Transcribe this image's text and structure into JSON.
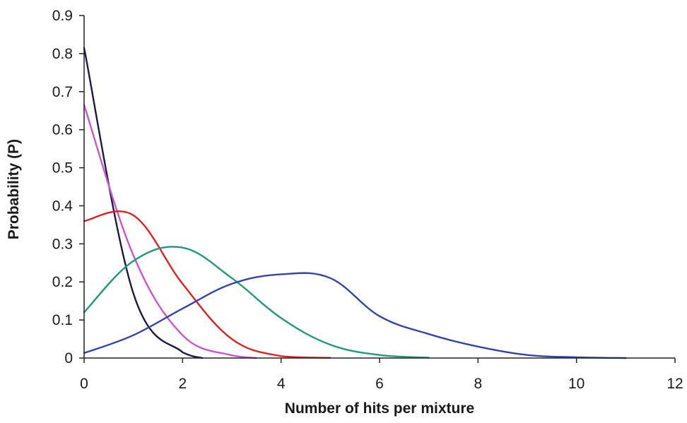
{
  "chart_data": {
    "type": "line",
    "title": "",
    "xlabel": "Number of hits per mixture",
    "ylabel": "Probability (P)",
    "xlim": [
      0,
      12
    ],
    "ylim": [
      0,
      0.9
    ],
    "x_ticks": [
      "0",
      "2",
      "4",
      "6",
      "8",
      "10",
      "12"
    ],
    "y_ticks": [
      "0",
      "0.1",
      "0.2",
      "0.3",
      "0.4",
      "0.5",
      "0.6",
      "0.7",
      "0.8",
      "0.9"
    ],
    "grid": false,
    "legend": "none",
    "series": [
      {
        "color": "#1a1a4a",
        "x": [
          0,
          1,
          2,
          2.4
        ],
        "y": [
          0.815,
          0.17,
          0.015,
          0
        ]
      },
      {
        "color": "#cc55cc",
        "x": [
          0,
          1,
          2,
          3,
          3.5
        ],
        "y": [
          0.665,
          0.27,
          0.06,
          0.007,
          0
        ]
      },
      {
        "color": "#dd2222",
        "x": [
          0,
          1,
          2,
          3,
          4,
          5
        ],
        "y": [
          0.36,
          0.375,
          0.195,
          0.05,
          0.005,
          0.0005
        ]
      },
      {
        "color": "#22997a",
        "x": [
          0,
          1,
          2,
          3,
          4,
          5,
          6,
          7
        ],
        "y": [
          0.12,
          0.255,
          0.29,
          0.21,
          0.105,
          0.035,
          0.008,
          0.001
        ]
      },
      {
        "color": "#3344aa",
        "x": [
          0,
          1,
          2,
          3,
          4,
          5,
          6,
          7,
          8,
          9,
          10,
          11
        ],
        "y": [
          0.013,
          0.06,
          0.13,
          0.195,
          0.22,
          0.21,
          0.11,
          0.063,
          0.03,
          0.008,
          0.002,
          0
        ]
      }
    ]
  }
}
